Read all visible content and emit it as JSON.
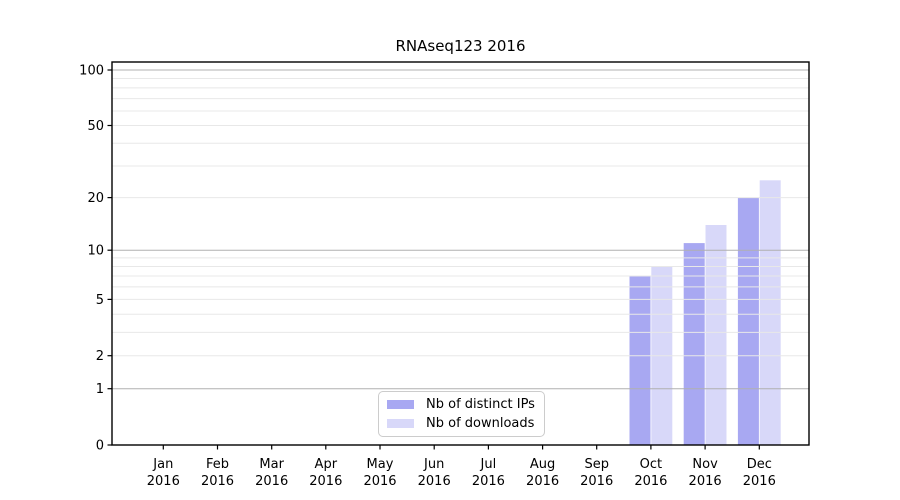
{
  "chart_data": {
    "type": "bar",
    "title": "RNAseq123 2016",
    "x": {
      "months": [
        "Jan",
        "Feb",
        "Mar",
        "Apr",
        "May",
        "Jun",
        "Jul",
        "Aug",
        "Sep",
        "Oct",
        "Nov",
        "Dec"
      ],
      "year": "2016"
    },
    "series": [
      {
        "name": "Nb of distinct IPs",
        "color": "#a8a8f2",
        "values": [
          0,
          0,
          0,
          0,
          0,
          0,
          0,
          0,
          0,
          7,
          11,
          20
        ]
      },
      {
        "name": "Nb of downloads",
        "color": "#d8d8f9",
        "values": [
          0,
          0,
          0,
          0,
          0,
          0,
          0,
          0,
          0,
          8,
          14,
          25
        ]
      }
    ],
    "y_axis": {
      "scale": "log1p",
      "ticks": [
        0,
        1,
        2,
        5,
        10,
        20,
        50,
        100
      ],
      "major_grid": [
        1,
        10,
        100
      ],
      "minor_grid": [
        2,
        3,
        4,
        5,
        6,
        7,
        8,
        9,
        20,
        30,
        40,
        50,
        60,
        70,
        80,
        90
      ],
      "range": [
        0,
        110
      ]
    },
    "legend": {
      "position": "lower center"
    },
    "grid": true
  },
  "colors": {
    "background": "#ffffff",
    "spine": "#000000",
    "major_grid": "#b0b0b0",
    "minor_grid": "#e8e8e8",
    "tick": "#000000"
  }
}
